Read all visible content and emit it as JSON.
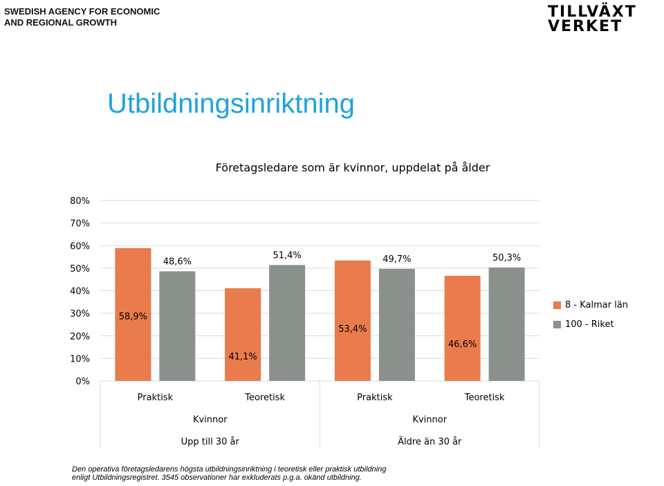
{
  "header": {
    "agency_line1": "SWEDISH AGENCY FOR ECONOMIC",
    "agency_line2": "AND REGIONAL GROWTH",
    "logo_line1": "TILLVÄXT",
    "logo_line2": "VERKET"
  },
  "page_title": "Utbildningsinriktning",
  "footnote": {
    "line1": "Den operativa företagsledarens högsta utbildningsinriktning i teoretisk eller praktisk utbildning",
    "line2": "enligt Utbildningsregistret. 3545 observationer har exkluderats p.g.a. okänd utbildning."
  },
  "chart_data": {
    "type": "bar",
    "title": "Företagsledare som är kvinnor, uppdelat på ålder",
    "xlabel": "",
    "ylabel": "",
    "ylim": [
      0,
      80
    ],
    "yticks": [
      "0%",
      "10%",
      "20%",
      "30%",
      "40%",
      "50%",
      "60%",
      "70%",
      "80%"
    ],
    "grid": true,
    "legend_position": "right",
    "categories": [
      "Praktisk",
      "Teoretisk",
      "Praktisk",
      "Teoretisk"
    ],
    "category_groups": [
      {
        "gender": "Kvinnor",
        "age": "Upp till 30 år"
      },
      {
        "gender": "Kvinnor",
        "age": "Äldre än 30 år"
      }
    ],
    "series": [
      {
        "name": "8 - Kalmar län",
        "color": "#e97b4c",
        "values": [
          58.9,
          41.1,
          53.4,
          46.6
        ],
        "labels": [
          "58,9%",
          "41,1%",
          "53,4%",
          "46,6%"
        ]
      },
      {
        "name": "100 - Riket",
        "color": "#8a918d",
        "values": [
          48.6,
          51.4,
          49.7,
          50.3
        ],
        "labels": [
          "48,6%",
          "51,4%",
          "49,7%",
          "50,3%"
        ]
      }
    ]
  }
}
